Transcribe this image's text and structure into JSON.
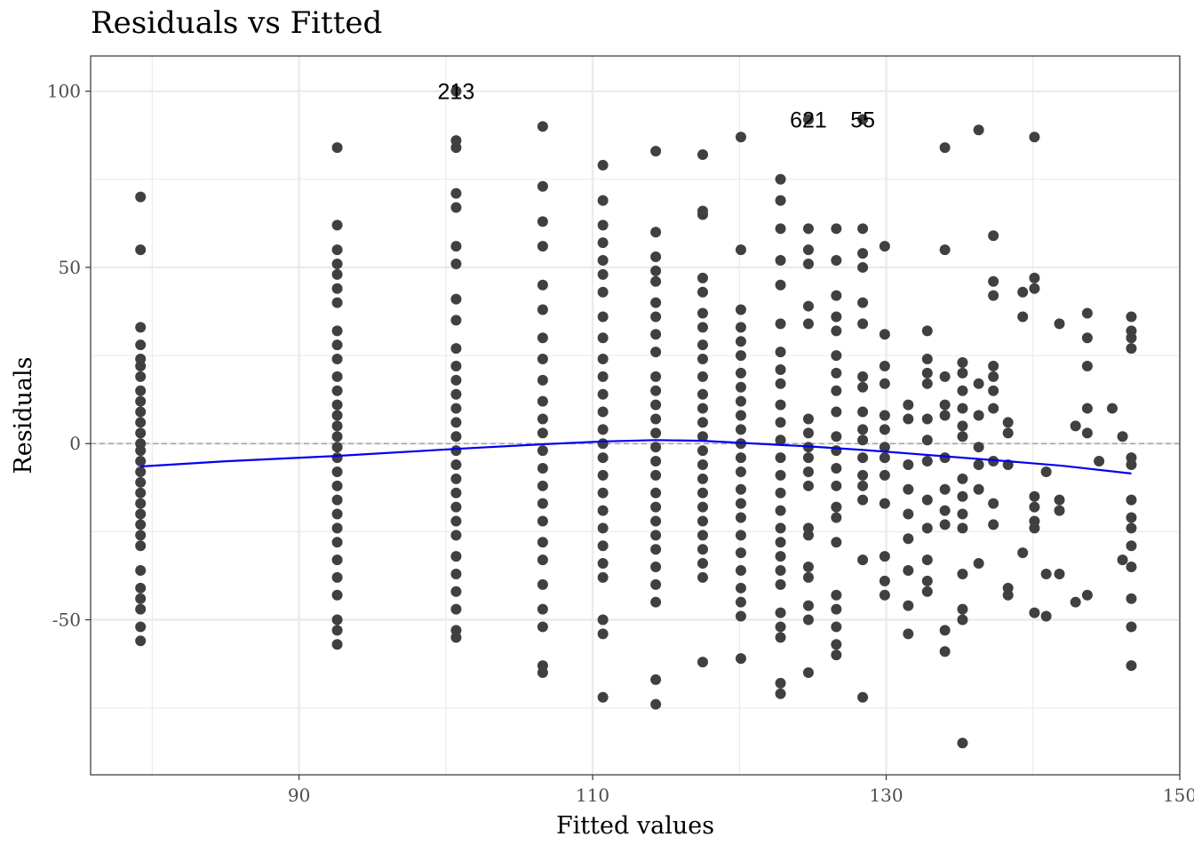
{
  "chart_data": {
    "type": "scatter",
    "title": "Residuals vs Fitted",
    "xlabel": "Fitted values",
    "ylabel": "Residuals",
    "xlim": [
      75.8,
      150
    ],
    "ylim": [
      -94,
      110
    ],
    "x_ticks": [
      90,
      110,
      130,
      150
    ],
    "y_ticks": [
      -50,
      0,
      50,
      100
    ],
    "x_tick_labels": [
      "90",
      "110",
      "130",
      "150"
    ],
    "y_tick_labels": [
      "-50",
      "0",
      "50",
      "100"
    ],
    "grid": true,
    "reference_line": {
      "y": 0,
      "style": "dashed",
      "color": "#999999"
    },
    "point_color": "#404040",
    "smooth_color": "#0000ee",
    "points": [
      [
        79.2,
        70
      ],
      [
        79.2,
        55
      ],
      [
        79.2,
        33
      ],
      [
        79.2,
        28
      ],
      [
        79.2,
        24
      ],
      [
        79.2,
        22
      ],
      [
        79.2,
        19
      ],
      [
        79.2,
        15
      ],
      [
        79.2,
        12
      ],
      [
        79.2,
        9
      ],
      [
        79.2,
        6
      ],
      [
        79.2,
        3
      ],
      [
        79.2,
        0
      ],
      [
        79.2,
        -2
      ],
      [
        79.2,
        -5
      ],
      [
        79.2,
        -8
      ],
      [
        79.2,
        -11
      ],
      [
        79.2,
        -14
      ],
      [
        79.2,
        -17
      ],
      [
        79.2,
        -20
      ],
      [
        79.2,
        -23
      ],
      [
        79.2,
        -26
      ],
      [
        79.2,
        -29
      ],
      [
        79.2,
        -36
      ],
      [
        79.2,
        -41
      ],
      [
        79.2,
        -44
      ],
      [
        79.2,
        -47
      ],
      [
        79.2,
        -52
      ],
      [
        79.2,
        -56
      ],
      [
        92.6,
        84
      ],
      [
        92.6,
        62
      ],
      [
        92.6,
        55
      ],
      [
        92.6,
        51
      ],
      [
        92.6,
        48
      ],
      [
        92.6,
        44
      ],
      [
        92.6,
        40
      ],
      [
        92.6,
        32
      ],
      [
        92.6,
        28
      ],
      [
        92.6,
        24
      ],
      [
        92.6,
        19
      ],
      [
        92.6,
        15
      ],
      [
        92.6,
        11
      ],
      [
        92.6,
        8
      ],
      [
        92.6,
        5
      ],
      [
        92.6,
        2
      ],
      [
        92.6,
        -1
      ],
      [
        92.6,
        -4
      ],
      [
        92.6,
        -8
      ],
      [
        92.6,
        -12
      ],
      [
        92.6,
        -16
      ],
      [
        92.6,
        -20
      ],
      [
        92.6,
        -24
      ],
      [
        92.6,
        -28
      ],
      [
        92.6,
        -33
      ],
      [
        92.6,
        -38
      ],
      [
        92.6,
        -43
      ],
      [
        92.6,
        -50
      ],
      [
        92.6,
        -53
      ],
      [
        92.6,
        -57
      ],
      [
        100.7,
        100
      ],
      [
        100.7,
        86
      ],
      [
        100.7,
        84
      ],
      [
        100.7,
        71
      ],
      [
        100.7,
        67
      ],
      [
        100.7,
        56
      ],
      [
        100.7,
        51
      ],
      [
        100.7,
        41
      ],
      [
        100.7,
        35
      ],
      [
        100.7,
        27
      ],
      [
        100.7,
        22
      ],
      [
        100.7,
        18
      ],
      [
        100.7,
        14
      ],
      [
        100.7,
        10
      ],
      [
        100.7,
        6
      ],
      [
        100.7,
        2
      ],
      [
        100.7,
        -2
      ],
      [
        100.7,
        -6
      ],
      [
        100.7,
        -10
      ],
      [
        100.7,
        -14
      ],
      [
        100.7,
        -18
      ],
      [
        100.7,
        -22
      ],
      [
        100.7,
        -26
      ],
      [
        100.7,
        -32
      ],
      [
        100.7,
        -37
      ],
      [
        100.7,
        -42
      ],
      [
        100.7,
        -47
      ],
      [
        100.7,
        -53
      ],
      [
        100.7,
        -55
      ],
      [
        106.6,
        90
      ],
      [
        106.6,
        73
      ],
      [
        106.6,
        63
      ],
      [
        106.6,
        56
      ],
      [
        106.6,
        45
      ],
      [
        106.6,
        38
      ],
      [
        106.6,
        30
      ],
      [
        106.6,
        24
      ],
      [
        106.6,
        18
      ],
      [
        106.6,
        12
      ],
      [
        106.6,
        7
      ],
      [
        106.6,
        3
      ],
      [
        106.6,
        -2
      ],
      [
        106.6,
        -7
      ],
      [
        106.6,
        -12
      ],
      [
        106.6,
        -17
      ],
      [
        106.6,
        -22
      ],
      [
        106.6,
        -28
      ],
      [
        106.6,
        -33
      ],
      [
        106.6,
        -40
      ],
      [
        106.6,
        -47
      ],
      [
        106.6,
        -52
      ],
      [
        106.6,
        -63
      ],
      [
        106.6,
        -65
      ],
      [
        110.7,
        79
      ],
      [
        110.7,
        69
      ],
      [
        110.7,
        62
      ],
      [
        110.7,
        57
      ],
      [
        110.7,
        52
      ],
      [
        110.7,
        48
      ],
      [
        110.7,
        43
      ],
      [
        110.7,
        36
      ],
      [
        110.7,
        30
      ],
      [
        110.7,
        24
      ],
      [
        110.7,
        19
      ],
      [
        110.7,
        14
      ],
      [
        110.7,
        9
      ],
      [
        110.7,
        4
      ],
      [
        110.7,
        0
      ],
      [
        110.7,
        -4
      ],
      [
        110.7,
        -9
      ],
      [
        110.7,
        -14
      ],
      [
        110.7,
        -19
      ],
      [
        110.7,
        -24
      ],
      [
        110.7,
        -29
      ],
      [
        110.7,
        -34
      ],
      [
        110.7,
        -38
      ],
      [
        110.7,
        -50
      ],
      [
        110.7,
        -54
      ],
      [
        110.7,
        -72
      ],
      [
        114.3,
        83
      ],
      [
        114.3,
        60
      ],
      [
        114.3,
        53
      ],
      [
        114.3,
        49
      ],
      [
        114.3,
        46
      ],
      [
        114.3,
        40
      ],
      [
        114.3,
        36
      ],
      [
        114.3,
        31
      ],
      [
        114.3,
        26
      ],
      [
        114.3,
        19
      ],
      [
        114.3,
        15
      ],
      [
        114.3,
        11
      ],
      [
        114.3,
        7
      ],
      [
        114.3,
        3
      ],
      [
        114.3,
        -1
      ],
      [
        114.3,
        -5
      ],
      [
        114.3,
        -9
      ],
      [
        114.3,
        -14
      ],
      [
        114.3,
        -18
      ],
      [
        114.3,
        -22
      ],
      [
        114.3,
        -26
      ],
      [
        114.3,
        -30
      ],
      [
        114.3,
        -35
      ],
      [
        114.3,
        -40
      ],
      [
        114.3,
        -45
      ],
      [
        114.3,
        -67
      ],
      [
        114.3,
        -74
      ],
      [
        117.5,
        82
      ],
      [
        117.5,
        66
      ],
      [
        117.5,
        65
      ],
      [
        117.5,
        47
      ],
      [
        117.5,
        43
      ],
      [
        117.5,
        37
      ],
      [
        117.5,
        33
      ],
      [
        117.5,
        28
      ],
      [
        117.5,
        24
      ],
      [
        117.5,
        19
      ],
      [
        117.5,
        14
      ],
      [
        117.5,
        10
      ],
      [
        117.5,
        6
      ],
      [
        117.5,
        2
      ],
      [
        117.5,
        -2
      ],
      [
        117.5,
        -6
      ],
      [
        117.5,
        -10
      ],
      [
        117.5,
        -14
      ],
      [
        117.5,
        -18
      ],
      [
        117.5,
        -22
      ],
      [
        117.5,
        -26
      ],
      [
        117.5,
        -30
      ],
      [
        117.5,
        -34
      ],
      [
        117.5,
        -38
      ],
      [
        117.5,
        -62
      ],
      [
        120.1,
        87
      ],
      [
        120.1,
        55
      ],
      [
        120.1,
        38
      ],
      [
        120.1,
        33
      ],
      [
        120.1,
        29
      ],
      [
        120.1,
        25
      ],
      [
        120.1,
        20
      ],
      [
        120.1,
        16
      ],
      [
        120.1,
        12
      ],
      [
        120.1,
        8
      ],
      [
        120.1,
        4
      ],
      [
        120.1,
        0
      ],
      [
        120.1,
        -4
      ],
      [
        120.1,
        -8
      ],
      [
        120.1,
        -13
      ],
      [
        120.1,
        -17
      ],
      [
        120.1,
        -21
      ],
      [
        120.1,
        -26
      ],
      [
        120.1,
        -31
      ],
      [
        120.1,
        -36
      ],
      [
        120.1,
        -41
      ],
      [
        120.1,
        -45
      ],
      [
        120.1,
        -49
      ],
      [
        120.1,
        -61
      ],
      [
        122.8,
        75
      ],
      [
        122.8,
        69
      ],
      [
        122.8,
        61
      ],
      [
        122.8,
        52
      ],
      [
        122.8,
        45
      ],
      [
        122.8,
        34
      ],
      [
        122.8,
        26
      ],
      [
        122.8,
        21
      ],
      [
        122.8,
        17
      ],
      [
        122.8,
        11
      ],
      [
        122.8,
        6
      ],
      [
        122.8,
        1
      ],
      [
        122.8,
        -4
      ],
      [
        122.8,
        -9
      ],
      [
        122.8,
        -14
      ],
      [
        122.8,
        -19
      ],
      [
        122.8,
        -24
      ],
      [
        122.8,
        -28
      ],
      [
        122.8,
        -32
      ],
      [
        122.8,
        -36
      ],
      [
        122.8,
        -40
      ],
      [
        122.8,
        -48
      ],
      [
        122.8,
        -52
      ],
      [
        122.8,
        -55
      ],
      [
        122.8,
        -68
      ],
      [
        122.8,
        -71
      ],
      [
        124.7,
        92
      ],
      [
        124.7,
        61
      ],
      [
        124.7,
        55
      ],
      [
        124.7,
        51
      ],
      [
        124.7,
        39
      ],
      [
        124.7,
        34
      ],
      [
        124.7,
        7
      ],
      [
        124.7,
        3
      ],
      [
        124.7,
        -1
      ],
      [
        124.7,
        -4
      ],
      [
        124.7,
        -8
      ],
      [
        124.7,
        -12
      ],
      [
        124.7,
        -24
      ],
      [
        124.7,
        -26
      ],
      [
        124.7,
        -35
      ],
      [
        124.7,
        -38
      ],
      [
        124.7,
        -46
      ],
      [
        124.7,
        -50
      ],
      [
        124.7,
        -65
      ],
      [
        126.6,
        61
      ],
      [
        126.6,
        52
      ],
      [
        126.6,
        42
      ],
      [
        126.6,
        36
      ],
      [
        126.6,
        32
      ],
      [
        126.6,
        25
      ],
      [
        126.6,
        20
      ],
      [
        126.6,
        15
      ],
      [
        126.6,
        9
      ],
      [
        126.6,
        2
      ],
      [
        126.6,
        -2
      ],
      [
        126.6,
        -7
      ],
      [
        126.6,
        -12
      ],
      [
        126.6,
        -18
      ],
      [
        126.6,
        -21
      ],
      [
        126.6,
        -28
      ],
      [
        126.6,
        -43
      ],
      [
        126.6,
        -47
      ],
      [
        126.6,
        -52
      ],
      [
        126.6,
        -57
      ],
      [
        126.6,
        -60
      ],
      [
        128.4,
        92
      ],
      [
        128.4,
        61
      ],
      [
        128.4,
        54
      ],
      [
        128.4,
        50
      ],
      [
        128.4,
        40
      ],
      [
        128.4,
        34
      ],
      [
        128.4,
        19
      ],
      [
        128.4,
        16
      ],
      [
        128.4,
        9
      ],
      [
        128.4,
        4
      ],
      [
        128.4,
        1
      ],
      [
        128.4,
        -4
      ],
      [
        128.4,
        -9
      ],
      [
        128.4,
        -12
      ],
      [
        128.4,
        -16
      ],
      [
        128.4,
        -33
      ],
      [
        128.4,
        -72
      ],
      [
        129.9,
        56
      ],
      [
        129.9,
        31
      ],
      [
        129.9,
        22
      ],
      [
        129.9,
        17
      ],
      [
        129.9,
        8
      ],
      [
        129.9,
        4
      ],
      [
        129.9,
        -1
      ],
      [
        129.9,
        -4
      ],
      [
        129.9,
        -9
      ],
      [
        129.9,
        -17
      ],
      [
        129.9,
        -32
      ],
      [
        129.9,
        -39
      ],
      [
        129.9,
        -43
      ],
      [
        131.5,
        11
      ],
      [
        131.5,
        7
      ],
      [
        131.5,
        -6
      ],
      [
        131.5,
        -13
      ],
      [
        131.5,
        -20
      ],
      [
        131.5,
        -27
      ],
      [
        131.5,
        -36
      ],
      [
        131.5,
        -46
      ],
      [
        131.5,
        -54
      ],
      [
        132.8,
        32
      ],
      [
        132.8,
        24
      ],
      [
        132.8,
        20
      ],
      [
        132.8,
        17
      ],
      [
        132.8,
        7
      ],
      [
        132.8,
        1
      ],
      [
        132.8,
        -5
      ],
      [
        132.8,
        -16
      ],
      [
        132.8,
        -24
      ],
      [
        132.8,
        -33
      ],
      [
        132.8,
        -39
      ],
      [
        132.8,
        -42
      ],
      [
        134.0,
        84
      ],
      [
        134.0,
        55
      ],
      [
        134.0,
        19
      ],
      [
        134.0,
        11
      ],
      [
        134.0,
        8
      ],
      [
        134.0,
        -4
      ],
      [
        134.0,
        -13
      ],
      [
        134.0,
        -19
      ],
      [
        134.0,
        -23
      ],
      [
        134.0,
        -53
      ],
      [
        134.0,
        -59
      ],
      [
        135.2,
        23
      ],
      [
        135.2,
        20
      ],
      [
        135.2,
        15
      ],
      [
        135.2,
        10
      ],
      [
        135.2,
        5
      ],
      [
        135.2,
        2
      ],
      [
        135.2,
        -10
      ],
      [
        135.2,
        -15
      ],
      [
        135.2,
        -20
      ],
      [
        135.2,
        -24
      ],
      [
        135.2,
        -37
      ],
      [
        135.2,
        -47
      ],
      [
        135.2,
        -50
      ],
      [
        135.2,
        -85
      ],
      [
        136.3,
        89
      ],
      [
        136.3,
        17
      ],
      [
        136.3,
        8
      ],
      [
        136.3,
        -1
      ],
      [
        136.3,
        -6
      ],
      [
        136.3,
        -13
      ],
      [
        136.3,
        -34
      ],
      [
        137.3,
        59
      ],
      [
        137.3,
        46
      ],
      [
        137.3,
        42
      ],
      [
        137.3,
        22
      ],
      [
        137.3,
        19
      ],
      [
        137.3,
        15
      ],
      [
        137.3,
        10
      ],
      [
        137.3,
        -5
      ],
      [
        137.3,
        -17
      ],
      [
        137.3,
        -23
      ],
      [
        138.3,
        6
      ],
      [
        138.3,
        3
      ],
      [
        138.3,
        -6
      ],
      [
        138.3,
        -41
      ],
      [
        138.3,
        -43
      ],
      [
        139.3,
        43
      ],
      [
        139.3,
        36
      ],
      [
        139.3,
        -31
      ],
      [
        140.1,
        87
      ],
      [
        140.1,
        47
      ],
      [
        140.1,
        44
      ],
      [
        140.1,
        -15
      ],
      [
        140.1,
        -18
      ],
      [
        140.1,
        -22
      ],
      [
        140.1,
        -24
      ],
      [
        140.1,
        -48
      ],
      [
        140.9,
        -8
      ],
      [
        140.9,
        -37
      ],
      [
        140.9,
        -49
      ],
      [
        141.8,
        34
      ],
      [
        141.8,
        -16
      ],
      [
        141.8,
        -19
      ],
      [
        141.8,
        -37
      ],
      [
        142.9,
        5
      ],
      [
        142.9,
        -45
      ],
      [
        143.7,
        37
      ],
      [
        143.7,
        30
      ],
      [
        143.7,
        22
      ],
      [
        143.7,
        10
      ],
      [
        143.7,
        3
      ],
      [
        143.7,
        -43
      ],
      [
        144.5,
        -5
      ],
      [
        145.4,
        10
      ],
      [
        146.1,
        2
      ],
      [
        146.1,
        -33
      ],
      [
        146.7,
        36
      ],
      [
        146.7,
        32
      ],
      [
        146.7,
        30
      ],
      [
        146.7,
        27
      ],
      [
        146.7,
        -4
      ],
      [
        146.7,
        -6
      ],
      [
        146.7,
        -16
      ],
      [
        146.7,
        -21
      ],
      [
        146.7,
        -24
      ],
      [
        146.7,
        -29
      ],
      [
        146.7,
        -35
      ],
      [
        146.7,
        -44
      ],
      [
        146.7,
        -52
      ],
      [
        146.7,
        -63
      ]
    ],
    "smooth_line": [
      [
        79.2,
        -6.5
      ],
      [
        85,
        -5
      ],
      [
        92.6,
        -3.5
      ],
      [
        100.7,
        -1.5
      ],
      [
        106.6,
        -0.2
      ],
      [
        110.7,
        0.6
      ],
      [
        114.3,
        1
      ],
      [
        117.5,
        0.8
      ],
      [
        120.1,
        0.2
      ],
      [
        124.7,
        -0.8
      ],
      [
        128.4,
        -1.8
      ],
      [
        131.5,
        -2.8
      ],
      [
        135.2,
        -4
      ],
      [
        138.3,
        -5
      ],
      [
        142,
        -6.3
      ],
      [
        146.7,
        -8.5
      ]
    ],
    "annotations": [
      {
        "label": "213",
        "x": 100.7,
        "y": 100
      },
      {
        "label": "621",
        "x": 124.7,
        "y": 92
      },
      {
        "label": "55",
        "x": 128.4,
        "y": 92
      }
    ]
  }
}
